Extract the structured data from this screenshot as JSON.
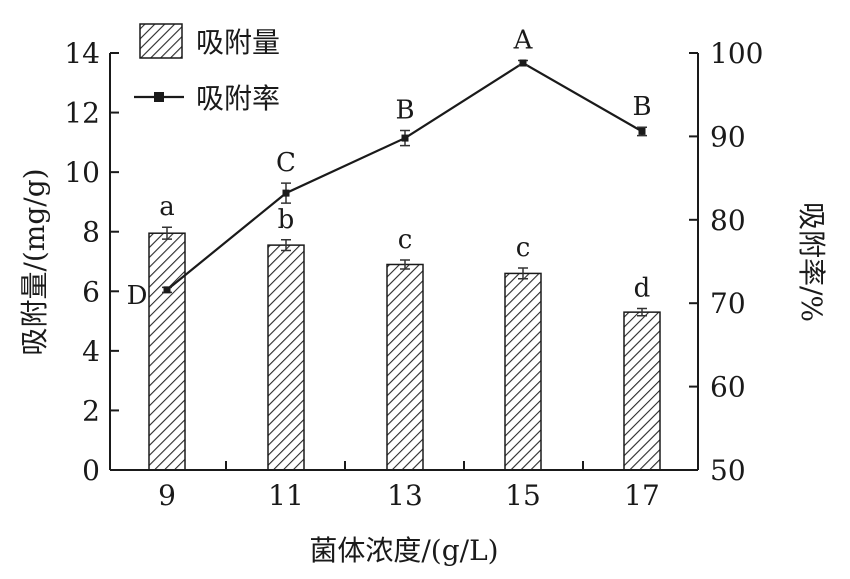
{
  "chart_data": {
    "type": "bar+line",
    "categories": [
      "9",
      "11",
      "13",
      "15",
      "17"
    ],
    "xlabel": "菌体浓度/(g/L)",
    "ylabel_left": "吸附量/(mg/g)",
    "ylabel_right": "吸附率/%",
    "ylim_left": [
      0,
      14
    ],
    "ylim_right": [
      50,
      100
    ],
    "yticks_left": [
      "0",
      "2",
      "4",
      "6",
      "8",
      "10",
      "12",
      "14"
    ],
    "yticks_right": [
      "50",
      "60",
      "70",
      "80",
      "90",
      "100"
    ],
    "legend_position": "top-left",
    "series": [
      {
        "name": "吸附量",
        "kind": "bar",
        "axis": "left",
        "values": [
          7.95,
          7.55,
          6.9,
          6.6,
          5.3
        ],
        "errors": [
          0.2,
          0.18,
          0.15,
          0.18,
          0.12
        ],
        "labels": [
          "a",
          "b",
          "c",
          "c",
          "d"
        ]
      },
      {
        "name": "吸附率",
        "kind": "line",
        "axis": "right",
        "values": [
          71.6,
          83.2,
          89.8,
          98.8,
          90.6
        ],
        "errors": [
          0.3,
          1.2,
          0.9,
          0.3,
          0.5
        ],
        "labels": [
          "D",
          "C",
          "B",
          "A",
          "B"
        ]
      }
    ]
  }
}
